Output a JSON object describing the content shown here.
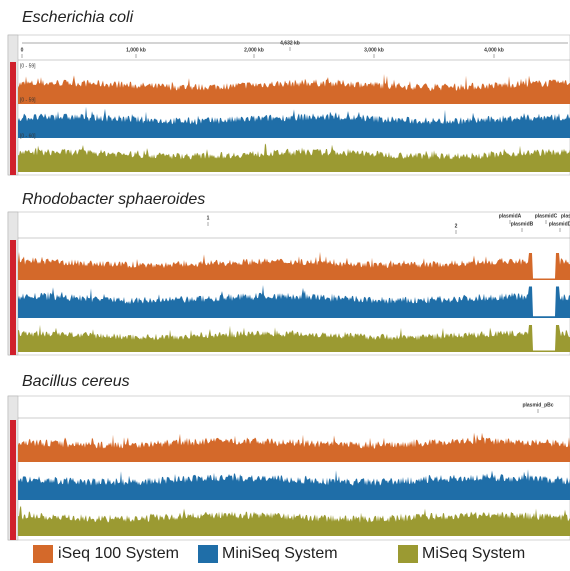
{
  "panels": [
    {
      "title": "Escherichia coli",
      "ruler": {
        "total": "4,632 kb",
        "ticks": [
          "0",
          "1,000 kb",
          "2,000 kb",
          "3,000 kb",
          "4,000 kb"
        ]
      },
      "tracks": [
        "[0 - 59]",
        "[0 - 59]",
        "[0 - 60]"
      ]
    },
    {
      "title": "Rhodobacter sphaeroides",
      "ruler": {
        "ticks": [
          "1",
          "2",
          "plasmidA",
          "plasmidB",
          "plasmidC",
          "plasmidD",
          "plasmidE"
        ]
      }
    },
    {
      "title": "Bacillus cereus",
      "ruler": {
        "ticks": [
          "plasmid_pBc"
        ]
      }
    }
  ],
  "legend": [
    {
      "label": "iSeq 100 System",
      "color": "#d4692a"
    },
    {
      "label": "MiniSeq System",
      "color": "#1f6ea8"
    },
    {
      "label": "MiSeq System",
      "color": "#9b9a32"
    }
  ]
}
